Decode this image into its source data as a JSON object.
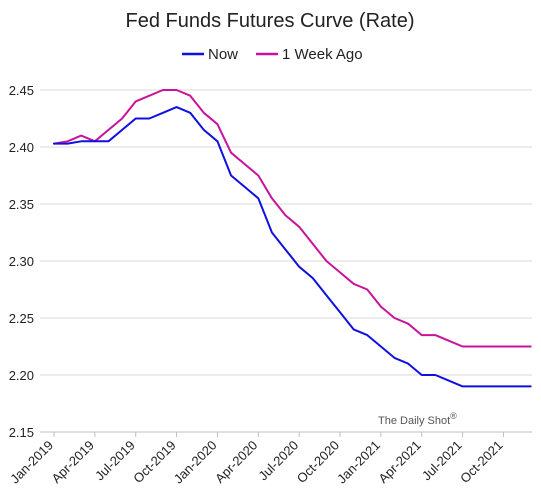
{
  "chart_data": {
    "type": "line",
    "title": "Fed Funds Futures Curve (Rate)",
    "ylim": [
      2.15,
      2.45
    ],
    "yticks": [
      "2.45",
      "2.40",
      "2.35",
      "2.30",
      "2.25",
      "2.20",
      "2.15"
    ],
    "xticks": [
      "Jan-2019",
      "Apr-2019",
      "Jul-2019",
      "Oct-2019",
      "Jan-2020",
      "Apr-2020",
      "Jul-2020",
      "Oct-2020",
      "Jan-2021",
      "Apr-2021",
      "Jul-2021",
      "Oct-2021"
    ],
    "grid": "horizontal",
    "legend_position": "top",
    "x": [
      "2019-01",
      "2019-02",
      "2019-03",
      "2019-04",
      "2019-05",
      "2019-06",
      "2019-07",
      "2019-08",
      "2019-09",
      "2019-10",
      "2019-11",
      "2019-12",
      "2020-01",
      "2020-02",
      "2020-03",
      "2020-04",
      "2020-05",
      "2020-06",
      "2020-07",
      "2020-08",
      "2020-09",
      "2020-10",
      "2020-11",
      "2020-12",
      "2021-01",
      "2021-02",
      "2021-03",
      "2021-04",
      "2021-05",
      "2021-06",
      "2021-07",
      "2021-08",
      "2021-09",
      "2021-10",
      "2021-11",
      "2021-12"
    ],
    "series": [
      {
        "name": "Now",
        "color": "#1010e0",
        "values": [
          2.403,
          2.403,
          2.405,
          2.405,
          2.405,
          2.415,
          2.425,
          2.425,
          2.43,
          2.435,
          2.43,
          2.415,
          2.405,
          2.375,
          2.365,
          2.355,
          2.325,
          2.31,
          2.295,
          2.285,
          2.27,
          2.255,
          2.24,
          2.235,
          2.225,
          2.215,
          2.21,
          2.2,
          2.2,
          2.195,
          2.19,
          2.19,
          2.19,
          2.19,
          2.19,
          2.19
        ]
      },
      {
        "name": "1 Week Ago",
        "color": "#c8149b",
        "values": [
          2.403,
          2.405,
          2.41,
          2.405,
          2.415,
          2.425,
          2.44,
          2.445,
          2.45,
          2.45,
          2.445,
          2.43,
          2.42,
          2.395,
          2.385,
          2.375,
          2.355,
          2.34,
          2.33,
          2.315,
          2.3,
          2.29,
          2.28,
          2.275,
          2.26,
          2.25,
          2.245,
          2.235,
          2.235,
          2.23,
          2.225,
          2.225,
          2.225,
          2.225,
          2.225,
          2.225
        ]
      }
    ]
  },
  "watermark": {
    "text": "The Daily Shot",
    "mark": "®"
  }
}
